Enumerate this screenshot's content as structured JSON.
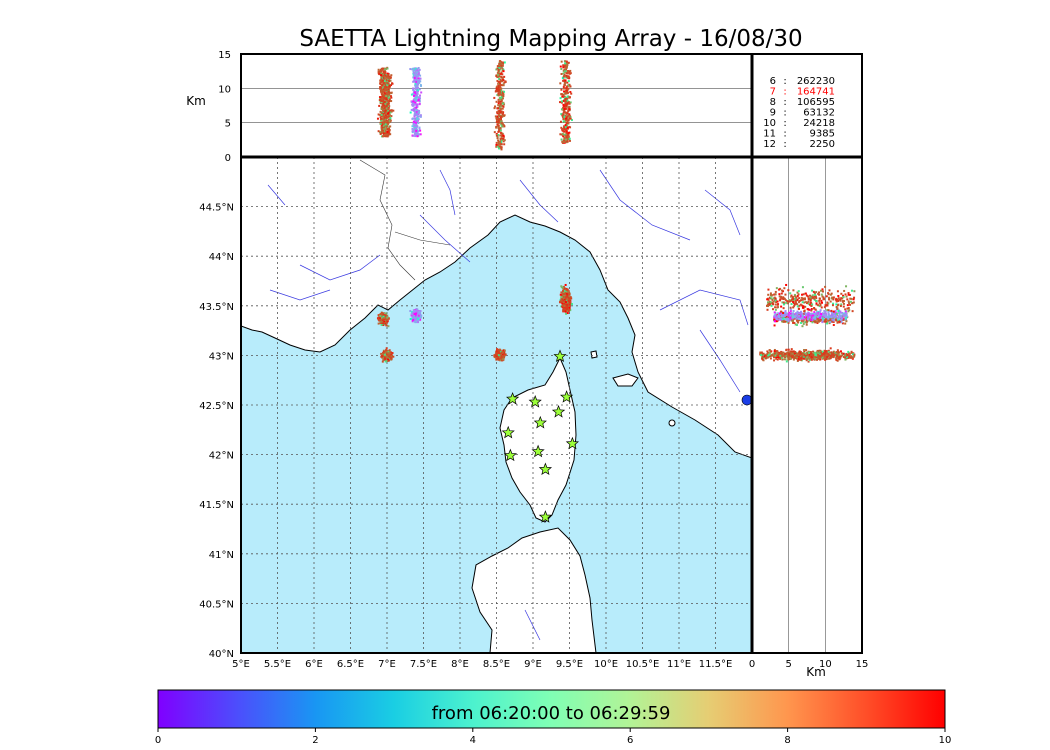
{
  "title": "SAETTA Lightning Mapping Array - 16/08/30",
  "top_panel": {
    "ylabel": "Km",
    "y_ticks": [
      "0",
      "5",
      "10",
      "15"
    ]
  },
  "side_panel": {
    "xlabel": "Km",
    "x_ticks": [
      "0",
      "5",
      "10",
      "15"
    ]
  },
  "map": {
    "lon_ticks": [
      "5°E",
      "5.5°E",
      "6°E",
      "6.5°E",
      "7°E",
      "7.5°E",
      "8°E",
      "8.5°E",
      "9°E",
      "9.5°E",
      "10°E",
      "10.5°E",
      "11°E",
      "11.5°E"
    ],
    "lat_ticks": [
      "40°N",
      "40.5°N",
      "41°N",
      "41.5°N",
      "42°N",
      "42.5°N",
      "43°N",
      "43.5°N",
      "44°N",
      "44.5°N"
    ],
    "colors": {
      "sea": "#b8ecfb",
      "land": "#ffffff",
      "grid": "#555555",
      "river": "#3a3ae0",
      "border": "#333333"
    }
  },
  "station_counts": [
    {
      "stations": "6",
      "count": "262230",
      "color": "#000000"
    },
    {
      "stations": "7",
      "count": "164741",
      "color": "#ff0000"
    },
    {
      "stations": "8",
      "count": "106595",
      "color": "#000000"
    },
    {
      "stations": "9",
      "count": "63132",
      "color": "#000000"
    },
    {
      "stations": "10",
      "count": "24218",
      "color": "#000000"
    },
    {
      "stations": "11",
      "count": "9385",
      "color": "#000000"
    },
    {
      "stations": "12",
      "count": "2250",
      "color": "#000000"
    }
  ],
  "colorbar": {
    "label": "from 06:20:00 to 06:29:59",
    "ticks": [
      "0",
      "2",
      "4",
      "6",
      "8",
      "10"
    ],
    "range": [
      0,
      10
    ],
    "colormap": "rainbow"
  },
  "chart_data": {
    "type": "scatter",
    "title": "SAETTA Lightning Mapping Array - 16/08/30",
    "xlabel": "",
    "ylabel": "",
    "xlim": [
      5,
      12
    ],
    "ylim": [
      40,
      45
    ],
    "altitude_lim_km": [
      0,
      15
    ],
    "color_scale": "time (minutes from 06:20:00)",
    "clusters": [
      {
        "lon": 6.95,
        "lat": 43.37,
        "alt_km": [
          3,
          13
        ],
        "dominant_time": 9
      },
      {
        "lon": 7.4,
        "lat": 43.4,
        "alt_km": [
          3,
          13
        ],
        "dominant_time": 2
      },
      {
        "lon": 7.0,
        "lat": 43.0,
        "alt_km": [
          3,
          12
        ],
        "dominant_time": 9
      },
      {
        "lon": 8.55,
        "lat": 43.0,
        "alt_km": [
          1,
          14
        ],
        "dominant_time": 9
      },
      {
        "lon": 9.45,
        "lat": 43.55,
        "alt_km": [
          2,
          14
        ],
        "dominant_time": 9
      }
    ],
    "stations": [
      {
        "lon": 8.72,
        "lat": 42.56
      },
      {
        "lon": 9.03,
        "lat": 42.53
      },
      {
        "lon": 9.46,
        "lat": 42.58
      },
      {
        "lon": 9.35,
        "lat": 42.43
      },
      {
        "lon": 9.1,
        "lat": 42.32
      },
      {
        "lon": 8.66,
        "lat": 42.22
      },
      {
        "lon": 9.54,
        "lat": 42.11
      },
      {
        "lon": 8.69,
        "lat": 41.99
      },
      {
        "lon": 9.07,
        "lat": 42.03
      },
      {
        "lon": 9.17,
        "lat": 41.85
      },
      {
        "lon": 9.17,
        "lat": 41.37
      },
      {
        "lon": 9.37,
        "lat": 42.99
      }
    ]
  }
}
